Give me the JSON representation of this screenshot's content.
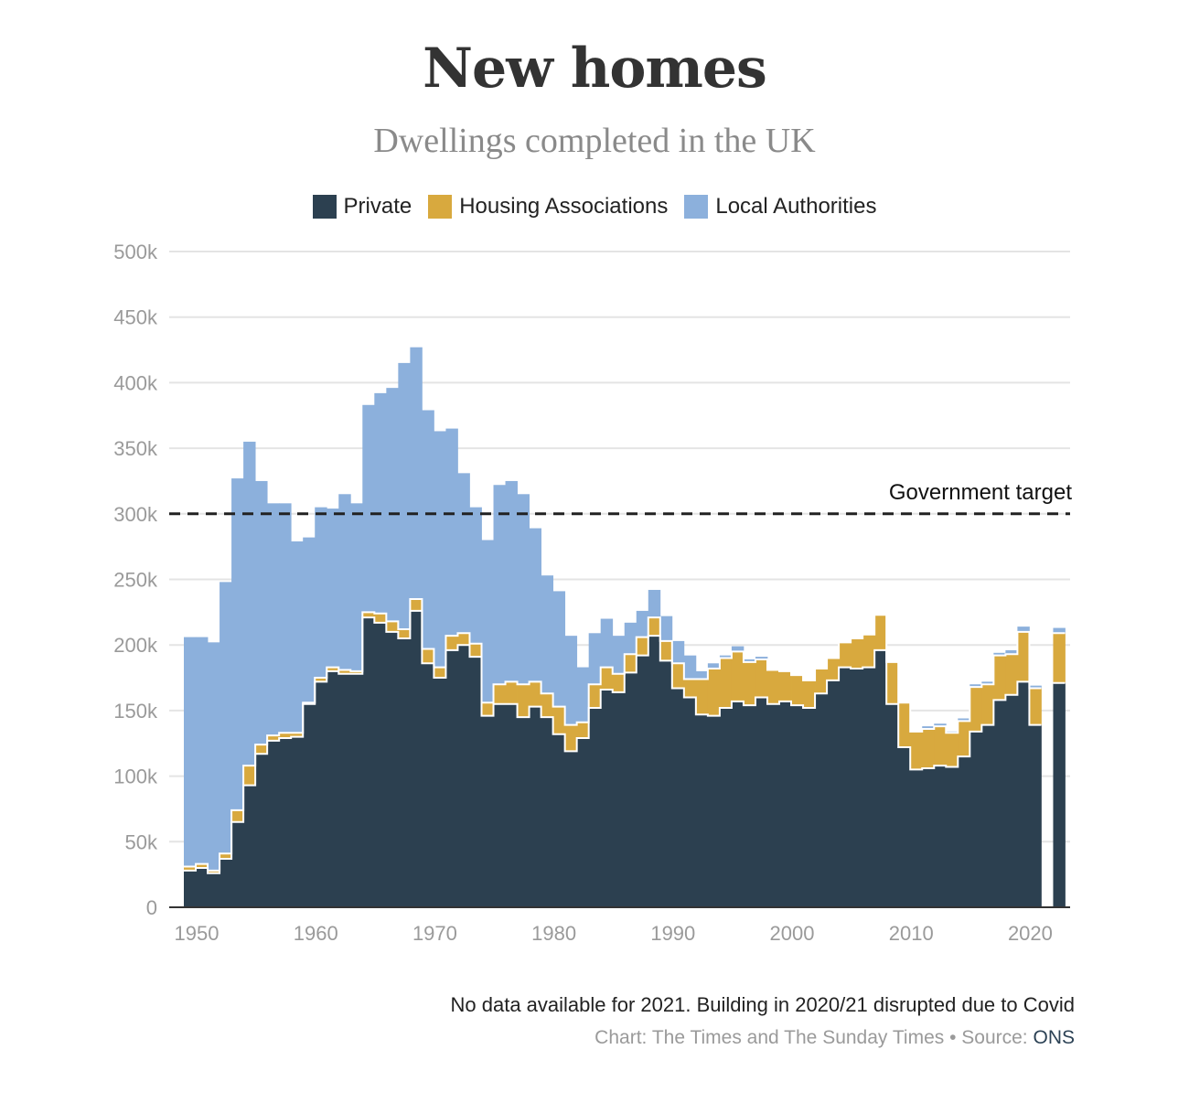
{
  "title": "New homes",
  "subtitle": "Dwellings completed in the UK",
  "legend": [
    {
      "label": "Private",
      "color": "#2c4050"
    },
    {
      "label": "Housing Associations",
      "color": "#d8a93e"
    },
    {
      "label": "Local Authorities",
      "color": "#8cb0dc"
    }
  ],
  "note": "No data available for 2021. Building in 2020/21 disrupted due to Covid",
  "credit": {
    "text": "Chart: The Times and The Sunday Times • Source: ",
    "link": "ONS"
  },
  "chart_data": {
    "type": "area",
    "stacked": true,
    "step": true,
    "x": [
      1949,
      1950,
      1951,
      1952,
      1953,
      1954,
      1955,
      1956,
      1957,
      1958,
      1959,
      1960,
      1961,
      1962,
      1963,
      1964,
      1965,
      1966,
      1967,
      1968,
      1969,
      1970,
      1971,
      1972,
      1973,
      1974,
      1975,
      1976,
      1977,
      1978,
      1979,
      1980,
      1981,
      1982,
      1983,
      1984,
      1985,
      1986,
      1987,
      1988,
      1989,
      1990,
      1991,
      1992,
      1993,
      1994,
      1995,
      1996,
      1997,
      1998,
      1999,
      2000,
      2001,
      2002,
      2003,
      2004,
      2005,
      2006,
      2007,
      2008,
      2009,
      2010,
      2011,
      2012,
      2013,
      2014,
      2015,
      2016,
      2017,
      2018,
      2019,
      2020,
      2021,
      2022
    ],
    "series": [
      {
        "name": "Private",
        "color": "#2c4050",
        "values": [
          28000,
          30000,
          26000,
          37000,
          65000,
          93000,
          117000,
          127000,
          129000,
          130000,
          155000,
          172000,
          180000,
          178000,
          178000,
          221000,
          217000,
          210000,
          205000,
          226000,
          186000,
          175000,
          196000,
          200000,
          191000,
          146000,
          155000,
          155000,
          145000,
          153000,
          145000,
          132000,
          119000,
          129000,
          152000,
          166000,
          164000,
          179000,
          192000,
          207000,
          188000,
          167000,
          160000,
          147000,
          146000,
          152000,
          157000,
          154000,
          160000,
          155000,
          157000,
          154000,
          152000,
          163000,
          173000,
          183000,
          182000,
          183000,
          196000,
          155000,
          122000,
          105000,
          106000,
          108000,
          107000,
          115000,
          134000,
          139000,
          158000,
          162000,
          172000,
          139000,
          null,
          171000
        ]
      },
      {
        "name": "Housing Associations",
        "color": "#d8a93e",
        "values": [
          3000,
          3000,
          2000,
          4000,
          9000,
          15000,
          7000,
          4000,
          4000,
          3000,
          1000,
          3000,
          3000,
          3000,
          2000,
          4000,
          7000,
          8000,
          7000,
          9000,
          11000,
          8000,
          11000,
          9000,
          10000,
          10000,
          15000,
          17000,
          25000,
          19000,
          18000,
          21000,
          20000,
          12000,
          18000,
          17000,
          14000,
          14000,
          14000,
          14000,
          15000,
          19000,
          14000,
          27000,
          36000,
          38000,
          38000,
          33000,
          29000,
          26000,
          23000,
          23000,
          21000,
          19000,
          17000,
          19000,
          23000,
          25000,
          27000,
          32000,
          34000,
          29000,
          30000,
          30000,
          26000,
          27000,
          34000,
          31000,
          34000,
          31000,
          38000,
          28000,
          null,
          38000
        ]
      },
      {
        "name": "Local Authorities",
        "color": "#8cb0dc",
        "values": [
          175000,
          173000,
          174000,
          207000,
          253000,
          247000,
          201000,
          177000,
          175000,
          146000,
          126000,
          130000,
          121000,
          134000,
          128000,
          158000,
          168000,
          178000,
          203000,
          192000,
          182000,
          180000,
          158000,
          122000,
          104000,
          124000,
          152000,
          153000,
          145000,
          117000,
          90000,
          88000,
          68000,
          42000,
          39000,
          37000,
          29000,
          24000,
          20000,
          21000,
          19000,
          17000,
          18000,
          6000,
          4000,
          2000,
          4000,
          2000,
          2000,
          0,
          0,
          0,
          0,
          0,
          0,
          0,
          0,
          0,
          0,
          0,
          0,
          0,
          2000,
          2000,
          1000,
          2000,
          2000,
          2000,
          2000,
          3000,
          4000,
          2000,
          null,
          4000
        ]
      }
    ],
    "reference_line": {
      "label": "Government target",
      "value": 300000
    },
    "ylim": [
      0,
      500000
    ],
    "y_ticks": [
      0,
      50000,
      100000,
      150000,
      200000,
      250000,
      300000,
      350000,
      400000,
      450000,
      500000
    ],
    "y_tick_labels": [
      "0",
      "50k",
      "100k",
      "150k",
      "200k",
      "250k",
      "300k",
      "350k",
      "400k",
      "450k",
      "500k"
    ],
    "x_ticks": [
      1950,
      1960,
      1970,
      1980,
      1990,
      2000,
      2010,
      2020
    ],
    "x_tick_labels": [
      "1950",
      "1960",
      "1970",
      "1980",
      "1990",
      "2000",
      "2010",
      "2020"
    ],
    "xlabel": "",
    "ylabel": "",
    "grid": true,
    "legend_position": "top"
  }
}
